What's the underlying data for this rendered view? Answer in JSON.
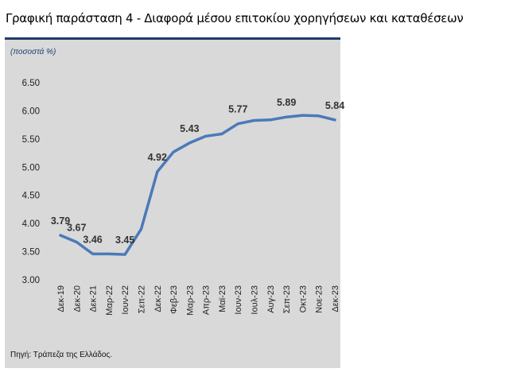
{
  "title": "Γραφική παράσταση 4 - Διαφορά μέσου επιτοκίου χορηγήσεων και καταθέσεων",
  "units_label": "(ποσοστά %)",
  "source": "Πηγή: Τράπεζα της Ελλάδος.",
  "colors": {
    "line": "#4a7ab9",
    "panel": "#d9d9d9",
    "accent": "#1f3d6e"
  },
  "chart_data": {
    "type": "line",
    "title": "Γραφική παράσταση 4 - Διαφορά μέσου επιτοκίου χορηγήσεων και καταθέσεων",
    "ylabel": "(ποσοστά %)",
    "xlabel": "",
    "ylim": [
      3.0,
      6.5
    ],
    "yticks": [
      "3.00",
      "3.50",
      "4.00",
      "4.50",
      "5.00",
      "5.50",
      "6.00",
      "6.50"
    ],
    "grid": false,
    "categories": [
      "Δεκ-19",
      "Δεκ-20",
      "Δεκ-21",
      "Μαρ-22",
      "Ιουν-22",
      "Σεπ-22",
      "Δεκ-22",
      "Φεβ-23",
      "Μαρ-23",
      "Απρ-23",
      "Μαϊ-23",
      "Ιουν-23",
      "Ιουλ-23",
      "Αυγ-23",
      "Σεπ-23",
      "Οκτ-23",
      "Νοε-23",
      "Δεκ-23"
    ],
    "values": [
      3.79,
      3.67,
      3.46,
      3.46,
      3.45,
      3.9,
      4.92,
      5.27,
      5.43,
      5.55,
      5.59,
      5.77,
      5.83,
      5.84,
      5.89,
      5.92,
      5.91,
      5.84
    ],
    "data_labels": [
      {
        "index": 0,
        "text": "3.79"
      },
      {
        "index": 1,
        "text": "3.67"
      },
      {
        "index": 2,
        "text": "3.46"
      },
      {
        "index": 4,
        "text": "3.45"
      },
      {
        "index": 6,
        "text": "4.92"
      },
      {
        "index": 8,
        "text": "5.43"
      },
      {
        "index": 11,
        "text": "5.77"
      },
      {
        "index": 14,
        "text": "5.89"
      },
      {
        "index": 17,
        "text": "5.84"
      }
    ]
  }
}
